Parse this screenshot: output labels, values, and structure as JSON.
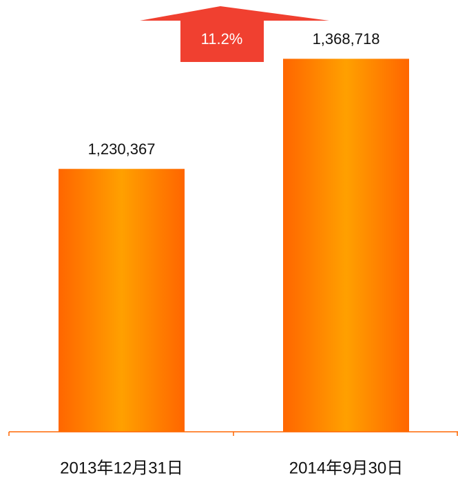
{
  "chart_data": {
    "type": "bar",
    "categories": [
      "2013年12月31日",
      "2014年9月30日"
    ],
    "values": [
      1230367,
      1368718
    ],
    "value_labels": [
      "1,230,367",
      "1,368,718"
    ],
    "color": "#ff6600",
    "ylim": [
      900000,
      1440000
    ],
    "annotation": {
      "text": "11.2%",
      "color": "#f04030"
    }
  }
}
